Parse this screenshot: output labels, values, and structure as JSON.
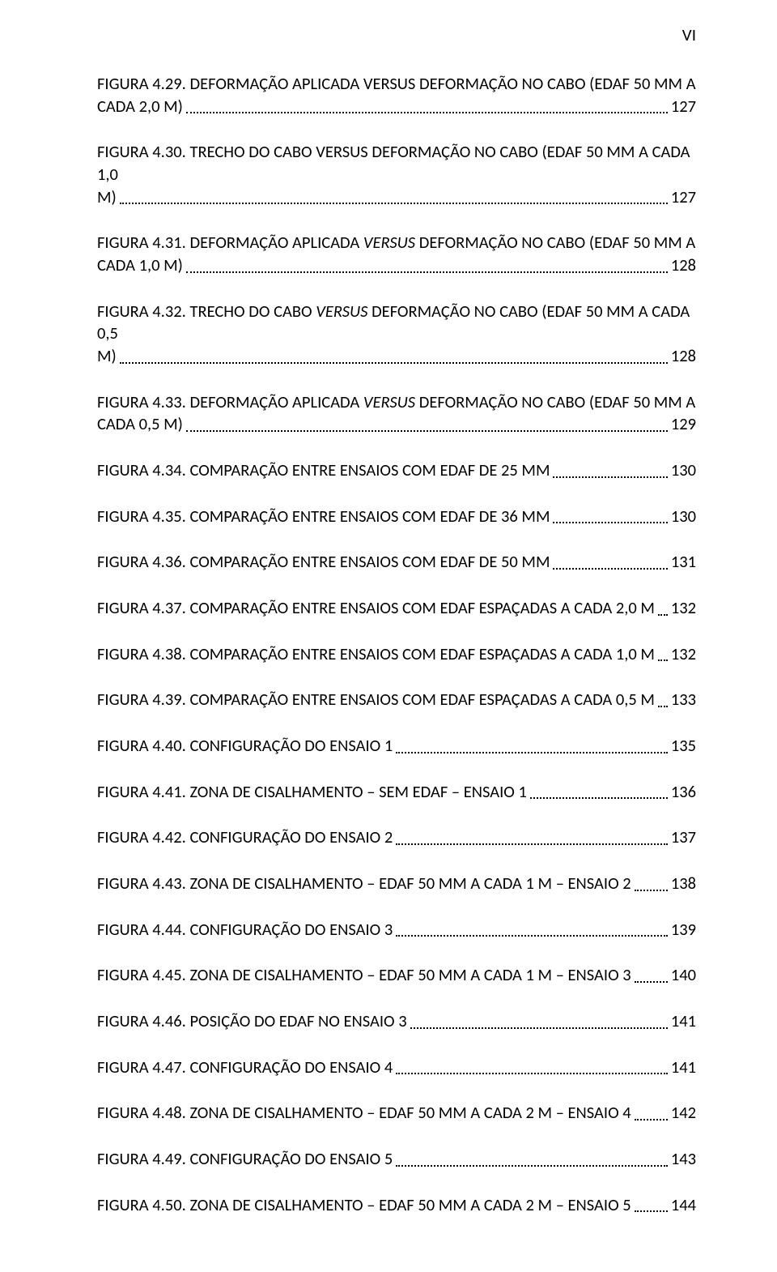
{
  "page_numeral": "VI",
  "entries": [
    {
      "multiline": true,
      "line1": "FIGURA 4.29. DEFORMAÇÃO APLICADA VERSUS DEFORMAÇÃO NO CABO (EDAF 50 MM A",
      "line2": "CADA 2,0 M)",
      "page": "127"
    },
    {
      "multiline": true,
      "line1": "FIGURA 4.30. TRECHO DO CABO VERSUS DEFORMAÇÃO NO CABO (EDAF 50 MM A CADA 1,0",
      "line2": "M)",
      "page": "127"
    },
    {
      "multiline": true,
      "line1_pre": "FIGURA 4.31. DEFORMAÇÃO APLICADA ",
      "line1_italic": "VERSUS",
      "line1_post": " DEFORMAÇÃO NO CABO (EDAF 50 MM A",
      "line2": "CADA 1,0 M)",
      "page": "128"
    },
    {
      "multiline": true,
      "line1_pre": "FIGURA 4.32. TRECHO DO CABO ",
      "line1_italic": "VERSUS",
      "line1_post": " DEFORMAÇÃO NO CABO (EDAF 50 MM A CADA 0,5",
      "line2": "M)",
      "page": "128"
    },
    {
      "multiline": true,
      "line1_pre": "FIGURA 4.33. DEFORMAÇÃO APLICADA ",
      "line1_italic": "VERSUS",
      "line1_post": " DEFORMAÇÃO NO CABO (EDAF 50 MM A",
      "line2": "CADA 0,5 M)",
      "page": "129"
    },
    {
      "label": "FIGURA 4.34. COMPARAÇÃO ENTRE ENSAIOS COM EDAF DE 25 MM",
      "page": "130"
    },
    {
      "label": "FIGURA 4.35. COMPARAÇÃO ENTRE ENSAIOS COM EDAF DE 36 MM",
      "page": "130"
    },
    {
      "label": "FIGURA 4.36. COMPARAÇÃO ENTRE ENSAIOS COM EDAF DE 50 MM",
      "page": "131"
    },
    {
      "label": "FIGURA 4.37. COMPARAÇÃO ENTRE ENSAIOS COM EDAF ESPAÇADAS A CADA 2,0 M",
      "page": "132"
    },
    {
      "label": "FIGURA 4.38. COMPARAÇÃO ENTRE ENSAIOS COM EDAF ESPAÇADAS A CADA 1,0 M",
      "page": "132"
    },
    {
      "label": "FIGURA 4.39. COMPARAÇÃO ENTRE ENSAIOS COM EDAF ESPAÇADAS A CADA 0,5 M",
      "page": "133"
    },
    {
      "label": "FIGURA 4.40. CONFIGURAÇÃO DO ENSAIO 1",
      "page": "135"
    },
    {
      "label": "FIGURA 4.41. ZONA DE CISALHAMENTO – SEM EDAF – ENSAIO 1",
      "page": "136"
    },
    {
      "label": "FIGURA 4.42. CONFIGURAÇÃO DO ENSAIO 2",
      "page": "137"
    },
    {
      "label": "FIGURA 4.43. ZONA DE CISALHAMENTO – EDAF 50 MM A CADA 1 M – ENSAIO 2",
      "page": "138"
    },
    {
      "label": "FIGURA 4.44. CONFIGURAÇÃO DO ENSAIO 3",
      "page": "139"
    },
    {
      "label": "FIGURA 4.45. ZONA DE CISALHAMENTO – EDAF 50 MM A CADA 1 M – ENSAIO 3",
      "page": "140"
    },
    {
      "label": "FIGURA 4.46. POSIÇÃO DO EDAF NO ENSAIO 3",
      "page": "141"
    },
    {
      "label": "FIGURA 4.47. CONFIGURAÇÃO DO ENSAIO 4",
      "page": "141"
    },
    {
      "label": "FIGURA 4.48. ZONA DE CISALHAMENTO – EDAF 50 MM A CADA 2 M – ENSAIO 4",
      "page": "142"
    },
    {
      "label": "FIGURA 4.49. CONFIGURAÇÃO DO ENSAIO 5",
      "page": "143"
    },
    {
      "label": "FIGURA 4.50. ZONA DE CISALHAMENTO – EDAF 50 MM A CADA 2 M – ENSAIO 5",
      "page": "144"
    }
  ]
}
